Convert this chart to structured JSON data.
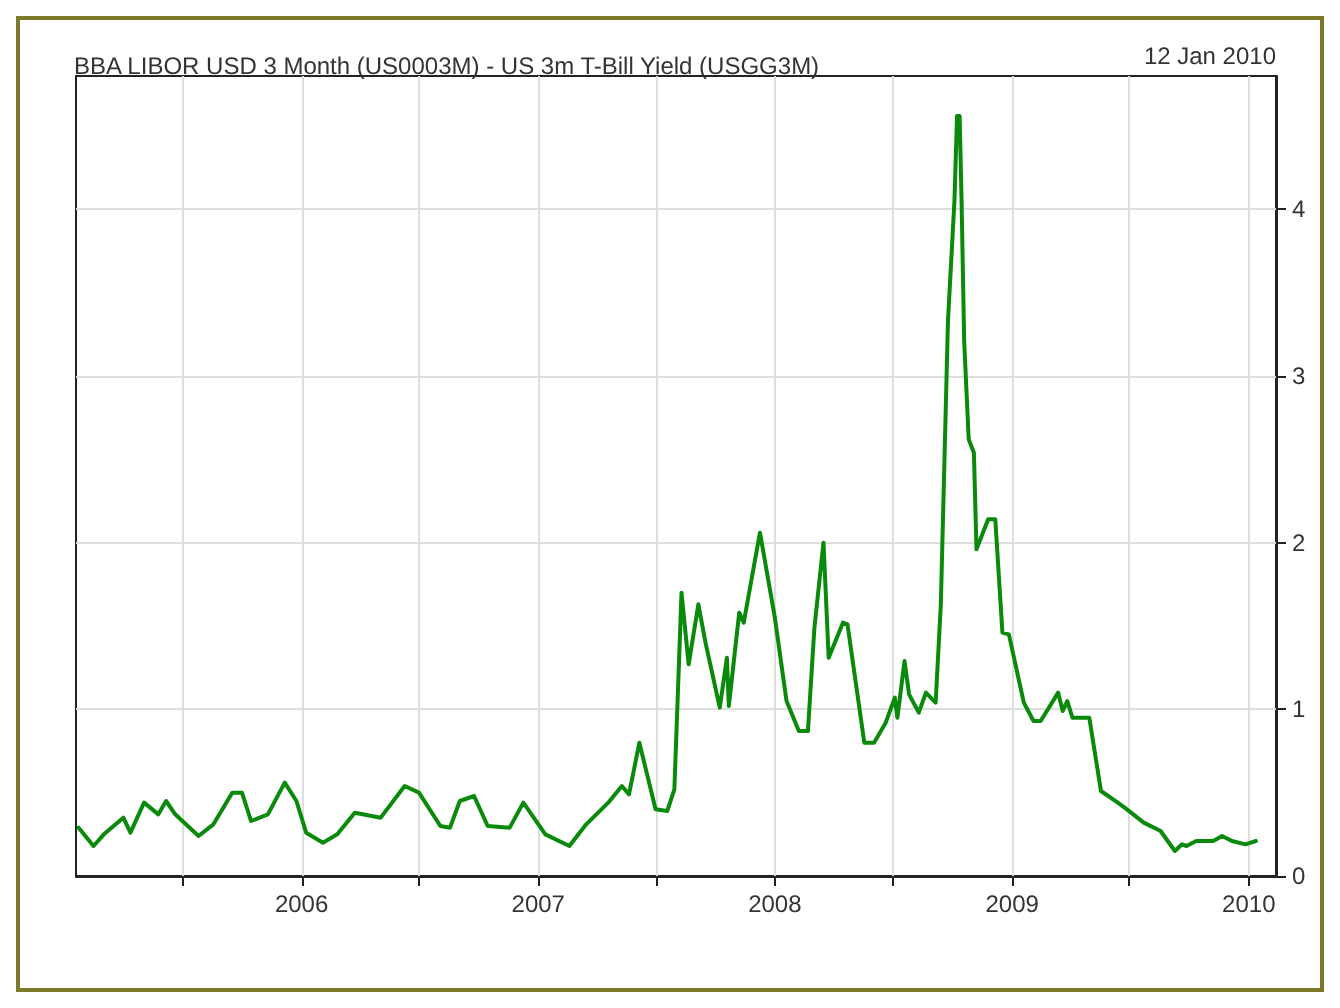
{
  "chart_data": {
    "type": "line",
    "title": "BBA LIBOR USD 3 Month (US0003M) - US 3m T-Bill Yield (USGG3M)",
    "annotations": [
      "12 Jan 2010"
    ],
    "xlim": [
      "2005-01-18",
      "2010-02-12"
    ],
    "xticks": [
      {
        "value": "2005-07-01",
        "label": null
      },
      {
        "value": "2006-01-01",
        "label": "2006"
      },
      {
        "value": "2006-07-01",
        "label": null
      },
      {
        "value": "2007-01-01",
        "label": "2007"
      },
      {
        "value": "2007-07-01",
        "label": null
      },
      {
        "value": "2008-01-01",
        "label": "2008"
      },
      {
        "value": "2008-07-01",
        "label": null
      },
      {
        "value": "2009-01-01",
        "label": "2009"
      },
      {
        "value": "2009-07-01",
        "label": null
      },
      {
        "value": "2010-01-01",
        "label": "2010"
      }
    ],
    "ylim": [
      0,
      4.8
    ],
    "yticks": [
      0,
      1,
      2,
      3,
      4
    ],
    "grid": true,
    "marker": "none",
    "line_style": "solid",
    "x": [
      "2005-01-22",
      "2005-02-14",
      "2005-03-02",
      "2005-04-01",
      "2005-04-12",
      "2005-05-03",
      "2005-05-25",
      "2005-06-06",
      "2005-06-20",
      "2005-07-26",
      "2005-08-18",
      "2005-09-16",
      "2005-10-01",
      "2005-10-15",
      "2005-11-10",
      "2005-12-06",
      "2005-12-24",
      "2006-01-08",
      "2006-02-03",
      "2006-02-25",
      "2006-03-24",
      "2006-05-03",
      "2006-06-09",
      "2006-07-01",
      "2006-08-03",
      "2006-08-18",
      "2006-09-02",
      "2006-09-24",
      "2006-10-15",
      "2006-11-18",
      "2006-12-09",
      "2007-01-12",
      "2007-02-18",
      "2007-03-16",
      "2007-04-19",
      "2007-05-10",
      "2007-05-21",
      "2007-06-06",
      "2007-07-01",
      "2007-07-19",
      "2007-07-30",
      "2007-08-10",
      "2007-08-21",
      "2007-09-05",
      "2007-09-16",
      "2007-10-08",
      "2007-10-19",
      "2007-10-22",
      "2007-11-07",
      "2007-11-14",
      "2007-12-09",
      "2008-01-01",
      "2008-01-19",
      "2008-02-07",
      "2008-02-21",
      "2008-03-02",
      "2008-03-16",
      "2008-03-24",
      "2008-04-15",
      "2008-04-22",
      "2008-05-18",
      "2008-06-02",
      "2008-06-20",
      "2008-07-04",
      "2008-07-08",
      "2008-07-19",
      "2008-07-26",
      "2008-08-10",
      "2008-08-21",
      "2008-09-05",
      "2008-09-13",
      "2008-09-24",
      "2008-10-04",
      "2008-10-08",
      "2008-10-12",
      "2008-10-15",
      "2008-10-19",
      "2008-10-26",
      "2008-11-03",
      "2008-11-07",
      "2008-11-25",
      "2008-12-06",
      "2008-12-17",
      "2008-12-27",
      "2009-01-19",
      "2009-02-03",
      "2009-02-14",
      "2009-03-13",
      "2009-03-20",
      "2009-03-27",
      "2009-04-04",
      "2009-04-30",
      "2009-05-18",
      "2009-06-13",
      "2009-06-27",
      "2009-07-23",
      "2009-08-18",
      "2009-09-09",
      "2009-09-20",
      "2009-09-27",
      "2009-10-12",
      "2009-11-07",
      "2009-11-21",
      "2009-12-06",
      "2009-12-27",
      "2010-01-12"
    ],
    "series": [
      {
        "color": "#0a8a0a",
        "values": [
          0.29,
          0.18,
          0.25,
          0.35,
          0.26,
          0.44,
          0.37,
          0.45,
          0.37,
          0.24,
          0.31,
          0.5,
          0.5,
          0.33,
          0.37,
          0.56,
          0.45,
          0.26,
          0.2,
          0.25,
          0.38,
          0.35,
          0.54,
          0.5,
          0.3,
          0.29,
          0.45,
          0.48,
          0.3,
          0.29,
          0.44,
          0.25,
          0.18,
          0.31,
          0.44,
          0.54,
          0.49,
          0.8,
          0.4,
          0.39,
          0.52,
          1.7,
          1.27,
          1.63,
          1.4,
          1.01,
          1.31,
          1.02,
          1.58,
          1.52,
          2.06,
          1.55,
          1.05,
          0.87,
          0.87,
          1.49,
          2.0,
          1.31,
          1.52,
          1.51,
          0.8,
          0.8,
          0.92,
          1.07,
          0.95,
          1.29,
          1.09,
          0.98,
          1.1,
          1.04,
          1.63,
          3.33,
          4.05,
          4.56,
          4.56,
          4.05,
          3.21,
          2.62,
          2.54,
          1.96,
          2.14,
          2.14,
          1.46,
          1.45,
          1.04,
          0.93,
          0.93,
          1.1,
          0.99,
          1.05,
          0.95,
          0.95,
          0.51,
          0.44,
          0.4,
          0.32,
          0.27,
          0.15,
          0.19,
          0.18,
          0.21,
          0.21,
          0.24,
          0.21,
          0.19,
          0.21
        ]
      }
    ]
  }
}
